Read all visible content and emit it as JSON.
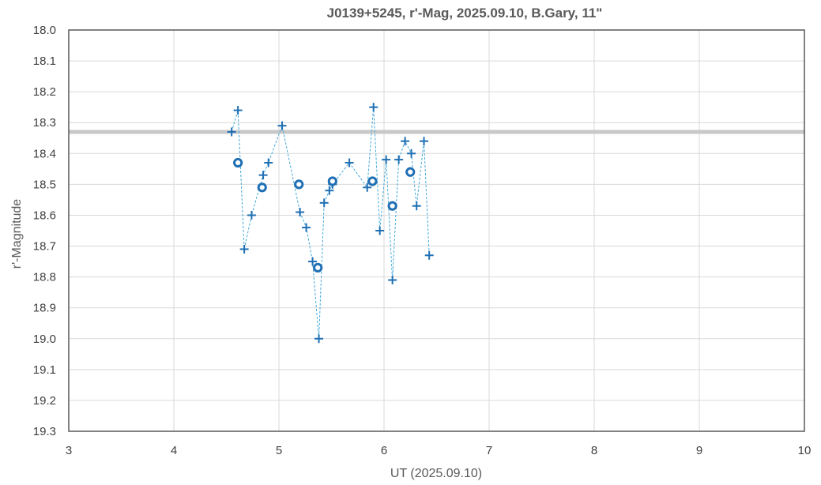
{
  "chart_data": {
    "type": "scatter",
    "title": "J0139+5245, r'-Mag, 2025.09.10, B.Gary, 11\"",
    "xlabel": "UT (2025.09.10)",
    "ylabel": "r'-Magnitude",
    "xlim": [
      3,
      10
    ],
    "ylim": [
      19.3,
      18.0
    ],
    "y_inverted": true,
    "grid": true,
    "x_ticks": [
      "3",
      "4",
      "5",
      "6",
      "7",
      "8",
      "9",
      "10"
    ],
    "y_ticks": [
      "18.0",
      "18.1",
      "18.2",
      "18.3",
      "18.4",
      "18.5",
      "18.6",
      "18.7",
      "18.8",
      "18.9",
      "19.0",
      "19.1",
      "19.2",
      "19.3"
    ],
    "reference_line": {
      "y": 18.33,
      "color": "#c8c8c8"
    },
    "series": [
      {
        "marker": "plus",
        "color": "#1f6fb4",
        "line": "dashed",
        "line_color": "#44a8d8",
        "points": [
          [
            4.55,
            18.33
          ],
          [
            4.61,
            18.26
          ],
          [
            4.67,
            18.71
          ],
          [
            4.74,
            18.6
          ],
          [
            4.85,
            18.47
          ],
          [
            4.9,
            18.43
          ],
          [
            5.03,
            18.31
          ],
          [
            5.2,
            18.59
          ],
          [
            5.26,
            18.64
          ],
          [
            5.32,
            18.75
          ],
          [
            5.38,
            19.0
          ],
          [
            5.43,
            18.56
          ],
          [
            5.48,
            18.52
          ],
          [
            5.51,
            18.5
          ],
          [
            5.67,
            18.43
          ],
          [
            5.84,
            18.51
          ],
          [
            5.9,
            18.25
          ],
          [
            5.96,
            18.65
          ],
          [
            6.02,
            18.42
          ],
          [
            6.08,
            18.81
          ],
          [
            6.14,
            18.42
          ],
          [
            6.2,
            18.36
          ],
          [
            6.26,
            18.4
          ],
          [
            6.31,
            18.57
          ],
          [
            6.38,
            18.36
          ],
          [
            6.43,
            18.73
          ]
        ]
      },
      {
        "marker": "circle",
        "color": "#1f6fb4",
        "points": [
          [
            4.61,
            18.43
          ],
          [
            4.84,
            18.51
          ],
          [
            5.19,
            18.5
          ],
          [
            5.37,
            18.77
          ],
          [
            5.51,
            18.49
          ],
          [
            5.89,
            18.49
          ],
          [
            6.08,
            18.57
          ],
          [
            6.25,
            18.46
          ]
        ]
      }
    ]
  }
}
